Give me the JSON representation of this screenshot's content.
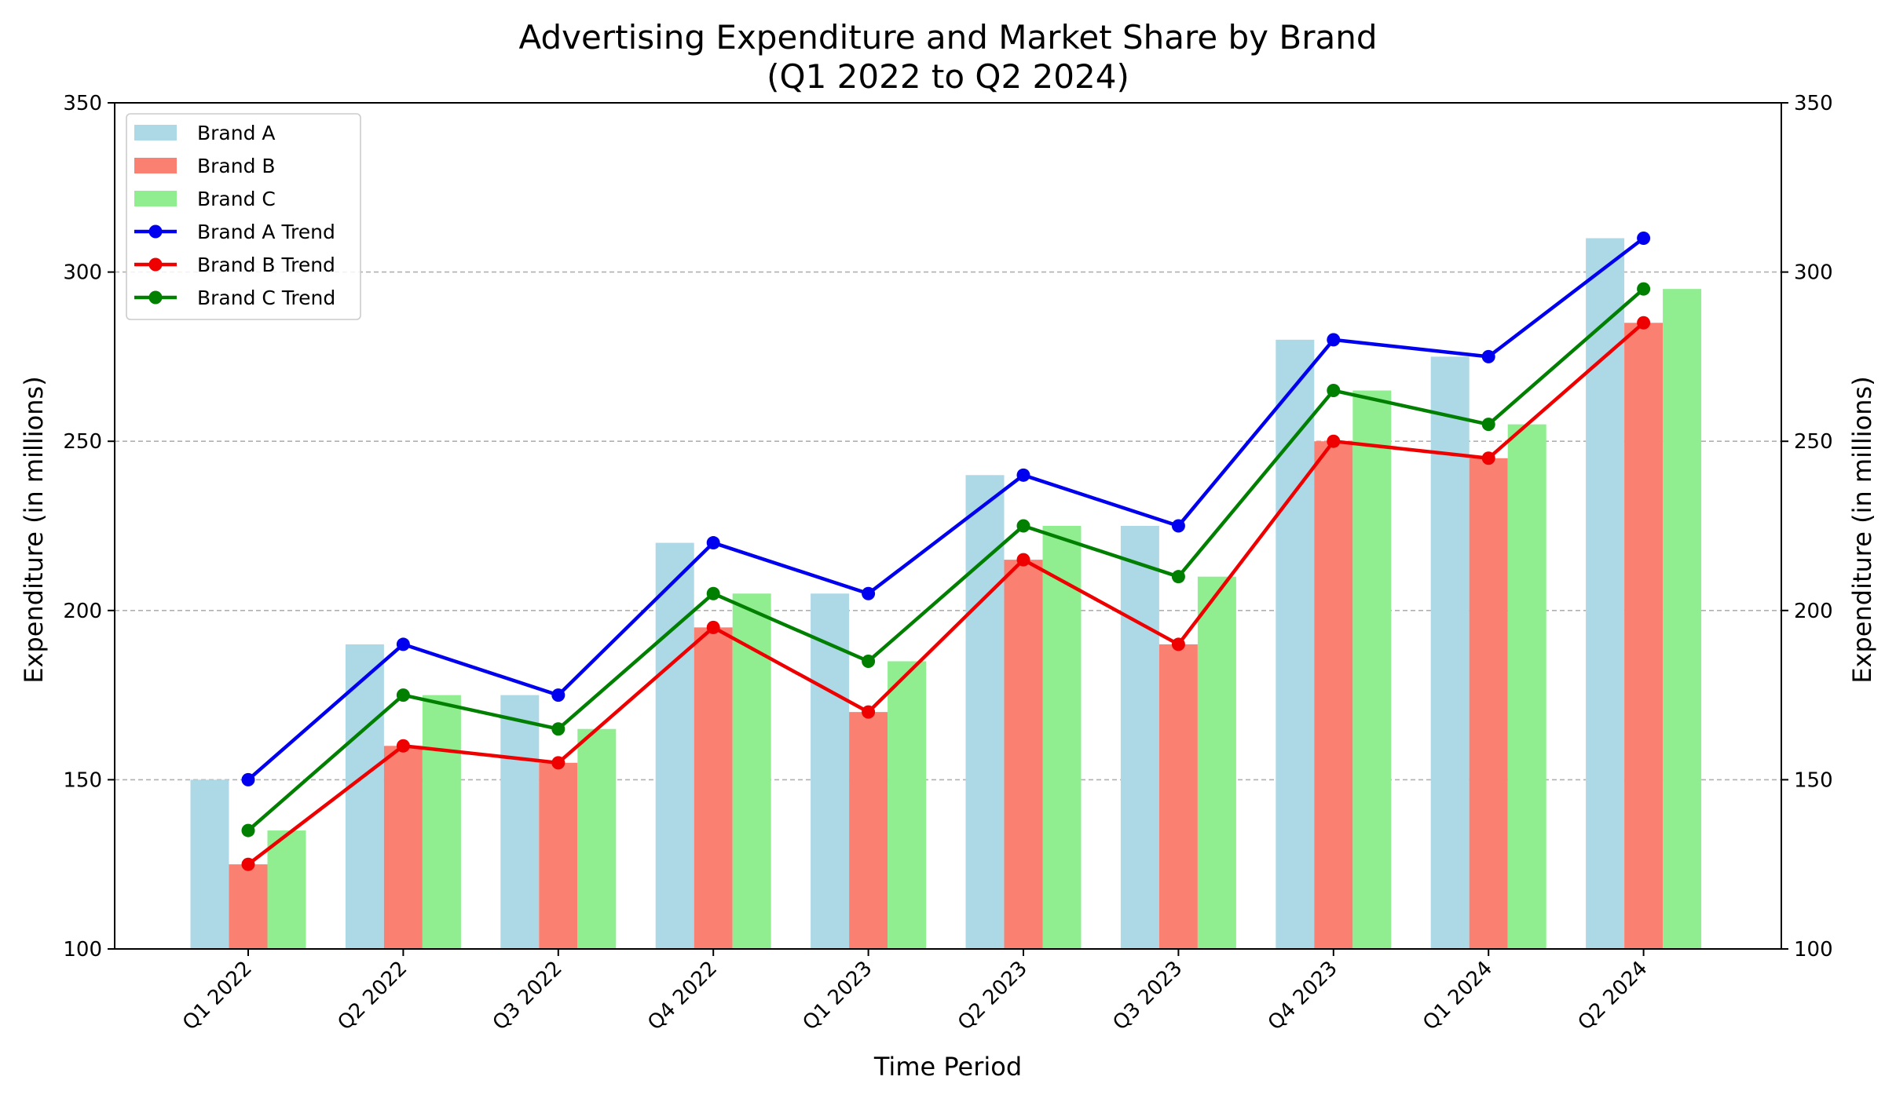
{
  "chart_data": {
    "type": "bar",
    "title_line1": "Advertising Expenditure and Market Share by Brand",
    "title_line2": "(Q1 2022 to Q2 2024)",
    "xlabel": "Time Period",
    "ylabel": "Expenditure (in millions)",
    "ylabel_right": "Expenditure (in millions)",
    "ylim": [
      100,
      350
    ],
    "yticks": [
      100,
      150,
      200,
      250,
      300,
      350
    ],
    "grid": "horizontal dashed",
    "legend_position": "top-left",
    "categories": [
      "Q1 2022",
      "Q2 2022",
      "Q3 2022",
      "Q4 2022",
      "Q1 2023",
      "Q2 2023",
      "Q3 2023",
      "Q4 2023",
      "Q1 2024",
      "Q2 2024"
    ],
    "series": [
      {
        "name": "Brand A",
        "color": "#add8e6",
        "values": [
          150,
          190,
          175,
          220,
          205,
          240,
          225,
          280,
          275,
          310
        ]
      },
      {
        "name": "Brand B",
        "color": "#fa8072",
        "values": [
          125,
          160,
          155,
          195,
          170,
          215,
          190,
          250,
          245,
          285
        ]
      },
      {
        "name": "Brand C",
        "color": "#90ee90",
        "values": [
          135,
          175,
          165,
          205,
          185,
          225,
          210,
          265,
          255,
          295
        ]
      }
    ],
    "trends": [
      {
        "name": "Brand A Trend",
        "color": "#0000ee",
        "values": [
          150,
          190,
          175,
          220,
          205,
          240,
          225,
          280,
          275,
          310
        ]
      },
      {
        "name": "Brand B Trend",
        "color": "#ee0000",
        "values": [
          125,
          160,
          155,
          195,
          170,
          215,
          190,
          250,
          245,
          285
        ]
      },
      {
        "name": "Brand C Trend",
        "color": "#007f00",
        "values": [
          135,
          175,
          165,
          205,
          185,
          225,
          210,
          265,
          255,
          295
        ]
      }
    ]
  }
}
